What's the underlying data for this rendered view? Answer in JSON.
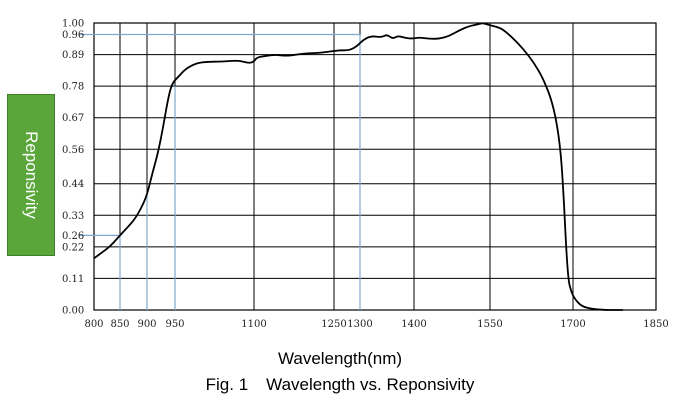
{
  "chart_data": {
    "type": "line",
    "xlabel": "Wavelength(nm)",
    "ylabel": "Reponsivity",
    "caption_fig": "Fig. 1",
    "caption_text": "Wavelength vs. Reponsivity",
    "xlim": [
      800,
      1850
    ],
    "ylim": [
      0,
      1.0
    ],
    "x_ticks": [
      800,
      850,
      900,
      950,
      1100,
      1250,
      1300,
      1400,
      1550,
      1700,
      1850
    ],
    "y_ticks": [
      0.0,
      0.11,
      0.22,
      0.26,
      0.33,
      0.44,
      0.56,
      0.67,
      0.78,
      0.89,
      0.96,
      1.0
    ],
    "y_tick_labels": [
      "0.00",
      "0.11",
      "0.22",
      "0.26",
      "0.33",
      "0.44",
      "0.56",
      "0.67",
      "0.78",
      "0.89",
      "0.96",
      "1.00"
    ],
    "grid": true,
    "colors": {
      "curve": "#000000",
      "grid": "#000000",
      "guide": "#7fa9cf",
      "label_box": "#5aa63a"
    },
    "guides": [
      {
        "x": 850,
        "y": 0.26
      },
      {
        "x": 900,
        "y": 0.4
      },
      {
        "x": 950,
        "y": 0.78
      },
      {
        "x": 1300,
        "y": 0.96
      }
    ],
    "series": [
      {
        "x": [
          800,
          815,
          830,
          845,
          860,
          875,
          888,
          900,
          910,
          920,
          930,
          938,
          945,
          955,
          970,
          990,
          1010,
          1040,
          1070,
          1090,
          1100,
          1105,
          1120,
          1140,
          1160,
          1180,
          1200,
          1220,
          1240,
          1260,
          1280,
          1295,
          1305,
          1320,
          1340,
          1350,
          1360,
          1370,
          1380,
          1395,
          1410,
          1430,
          1450,
          1470,
          1490,
          1510,
          1525,
          1535,
          1545,
          1555,
          1565,
          1575,
          1590,
          1610,
          1630,
          1645,
          1660,
          1670,
          1678,
          1683,
          1688,
          1692,
          1696,
          1700,
          1705,
          1712,
          1720,
          1732,
          1745,
          1760,
          1775,
          1790
        ],
        "y": [
          0.18,
          0.2,
          0.22,
          0.25,
          0.28,
          0.31,
          0.35,
          0.4,
          0.48,
          0.55,
          0.65,
          0.74,
          0.79,
          0.81,
          0.84,
          0.86,
          0.865,
          0.865,
          0.87,
          0.86,
          0.865,
          0.88,
          0.885,
          0.89,
          0.885,
          0.89,
          0.895,
          0.895,
          0.9,
          0.905,
          0.905,
          0.92,
          0.94,
          0.955,
          0.95,
          0.96,
          0.945,
          0.955,
          0.95,
          0.945,
          0.95,
          0.945,
          0.945,
          0.955,
          0.975,
          0.99,
          0.995,
          1.0,
          0.995,
          0.99,
          0.985,
          0.975,
          0.95,
          0.91,
          0.86,
          0.81,
          0.74,
          0.66,
          0.55,
          0.4,
          0.2,
          0.1,
          0.07,
          0.05,
          0.035,
          0.02,
          0.01,
          0.005,
          0.002,
          0.0,
          0.0,
          0.0
        ]
      }
    ]
  }
}
